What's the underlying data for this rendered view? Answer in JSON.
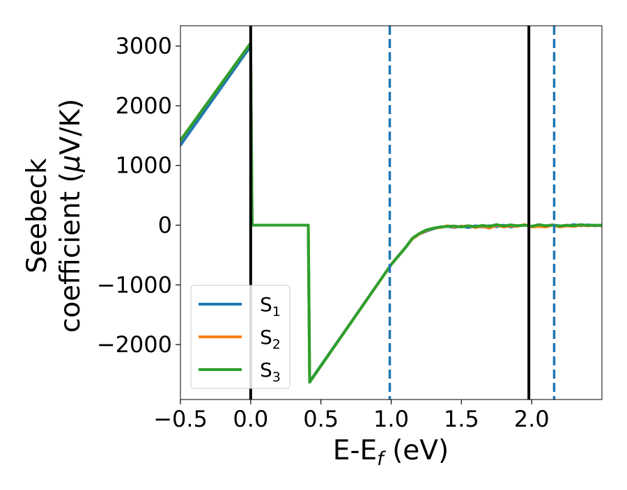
{
  "chart_data": {
    "type": "line",
    "title": "",
    "xlabel": "E-E",
    "xlabel_sub": "f",
    "xlabel_unit": " (eV)",
    "ylabel_line1": "Seebeck",
    "ylabel_line2_prefix": "coefficient  (",
    "ylabel_mu": "μ",
    "ylabel_line2_suffix": "V/K)",
    "xlim": [
      -0.5,
      2.5
    ],
    "ylim": [
      -2920,
      3340
    ],
    "xticks": [
      -0.5,
      0.0,
      0.5,
      1.0,
      1.5,
      2.0
    ],
    "xtick_labels": [
      "−0.5",
      "0.0",
      "0.5",
      "1.0",
      "1.5",
      "2.0"
    ],
    "yticks": [
      3000,
      2000,
      1000,
      0,
      -1000,
      -2000
    ],
    "ytick_labels": [
      "3000",
      "2000",
      "1000",
      "0",
      "−1000",
      "−2000"
    ],
    "grid": false,
    "legend_position": "lower-left",
    "vlines": [
      {
        "x": 0.0,
        "style": "solid",
        "color": "#000000"
      },
      {
        "x": 1.98,
        "style": "solid",
        "color": "#000000"
      },
      {
        "x": 0.99,
        "style": "dashed",
        "color": "#1f77b4"
      },
      {
        "x": 2.16,
        "style": "dashed",
        "color": "#1f77b4"
      }
    ],
    "series": [
      {
        "name": "S",
        "sub": "1",
        "color": "#1f77b4",
        "x": [
          -0.5,
          0.0,
          0.01,
          0.41,
          0.42,
          1.0,
          1.05,
          1.1,
          1.15,
          1.2,
          1.25,
          1.3,
          1.35,
          1.4,
          1.45,
          1.5,
          1.55,
          1.6,
          1.65,
          1.7,
          1.75,
          1.8,
          1.85,
          1.9,
          1.95,
          2.0,
          2.05,
          2.1,
          2.15,
          2.2,
          2.25,
          2.3,
          2.35,
          2.4,
          2.45,
          2.5
        ],
        "y": [
          1340,
          3000,
          0,
          0,
          -2620,
          -660,
          -520,
          -380,
          -230,
          -150,
          -100,
          -60,
          -30,
          -20,
          -40,
          -15,
          -40,
          -10,
          -30,
          -10,
          -25,
          0,
          -30,
          -10,
          0,
          -20,
          0,
          -20,
          0,
          -10,
          -15,
          10,
          -10,
          5,
          -10,
          0
        ]
      },
      {
        "name": "S",
        "sub": "2",
        "color": "#ff7f0e",
        "x": [
          -0.5,
          0.0,
          0.01,
          0.41,
          0.42,
          1.0,
          1.05,
          1.1,
          1.15,
          1.2,
          1.25,
          1.3,
          1.35,
          1.4,
          1.45,
          1.5,
          1.55,
          1.6,
          1.65,
          1.7,
          1.75,
          1.8,
          1.85,
          1.9,
          1.95,
          2.0,
          2.05,
          2.1,
          2.15,
          2.2,
          2.25,
          2.3,
          2.35,
          2.4,
          2.45,
          2.5
        ],
        "y": [
          1420,
          3050,
          0,
          0,
          -2630,
          -660,
          -520,
          -380,
          -230,
          -150,
          -90,
          -50,
          -40,
          -10,
          -30,
          -20,
          -10,
          -40,
          -20,
          -50,
          0,
          -30,
          -10,
          -20,
          10,
          -30,
          -20,
          -30,
          0,
          -30,
          -10,
          -20,
          0,
          -10,
          0,
          -10
        ]
      },
      {
        "name": "S",
        "sub": "3",
        "color": "#2ca02c",
        "x": [
          -0.5,
          0.0,
          0.01,
          0.41,
          0.42,
          1.0,
          1.05,
          1.1,
          1.15,
          1.2,
          1.25,
          1.3,
          1.35,
          1.4,
          1.45,
          1.5,
          1.55,
          1.6,
          1.65,
          1.7,
          1.75,
          1.8,
          1.85,
          1.9,
          1.95,
          2.0,
          2.05,
          2.1,
          2.15,
          2.2,
          2.25,
          2.3,
          2.35,
          2.4,
          2.45,
          2.5
        ],
        "y": [
          1420,
          3050,
          0,
          0,
          -2630,
          -660,
          -520,
          -380,
          -220,
          -140,
          -80,
          -50,
          -30,
          -20,
          -15,
          -30,
          -10,
          -25,
          -5,
          -20,
          10,
          -15,
          5,
          -10,
          0,
          -20,
          10,
          -10,
          5,
          -15,
          0,
          -10,
          10,
          -5,
          0,
          -5
        ]
      }
    ]
  }
}
